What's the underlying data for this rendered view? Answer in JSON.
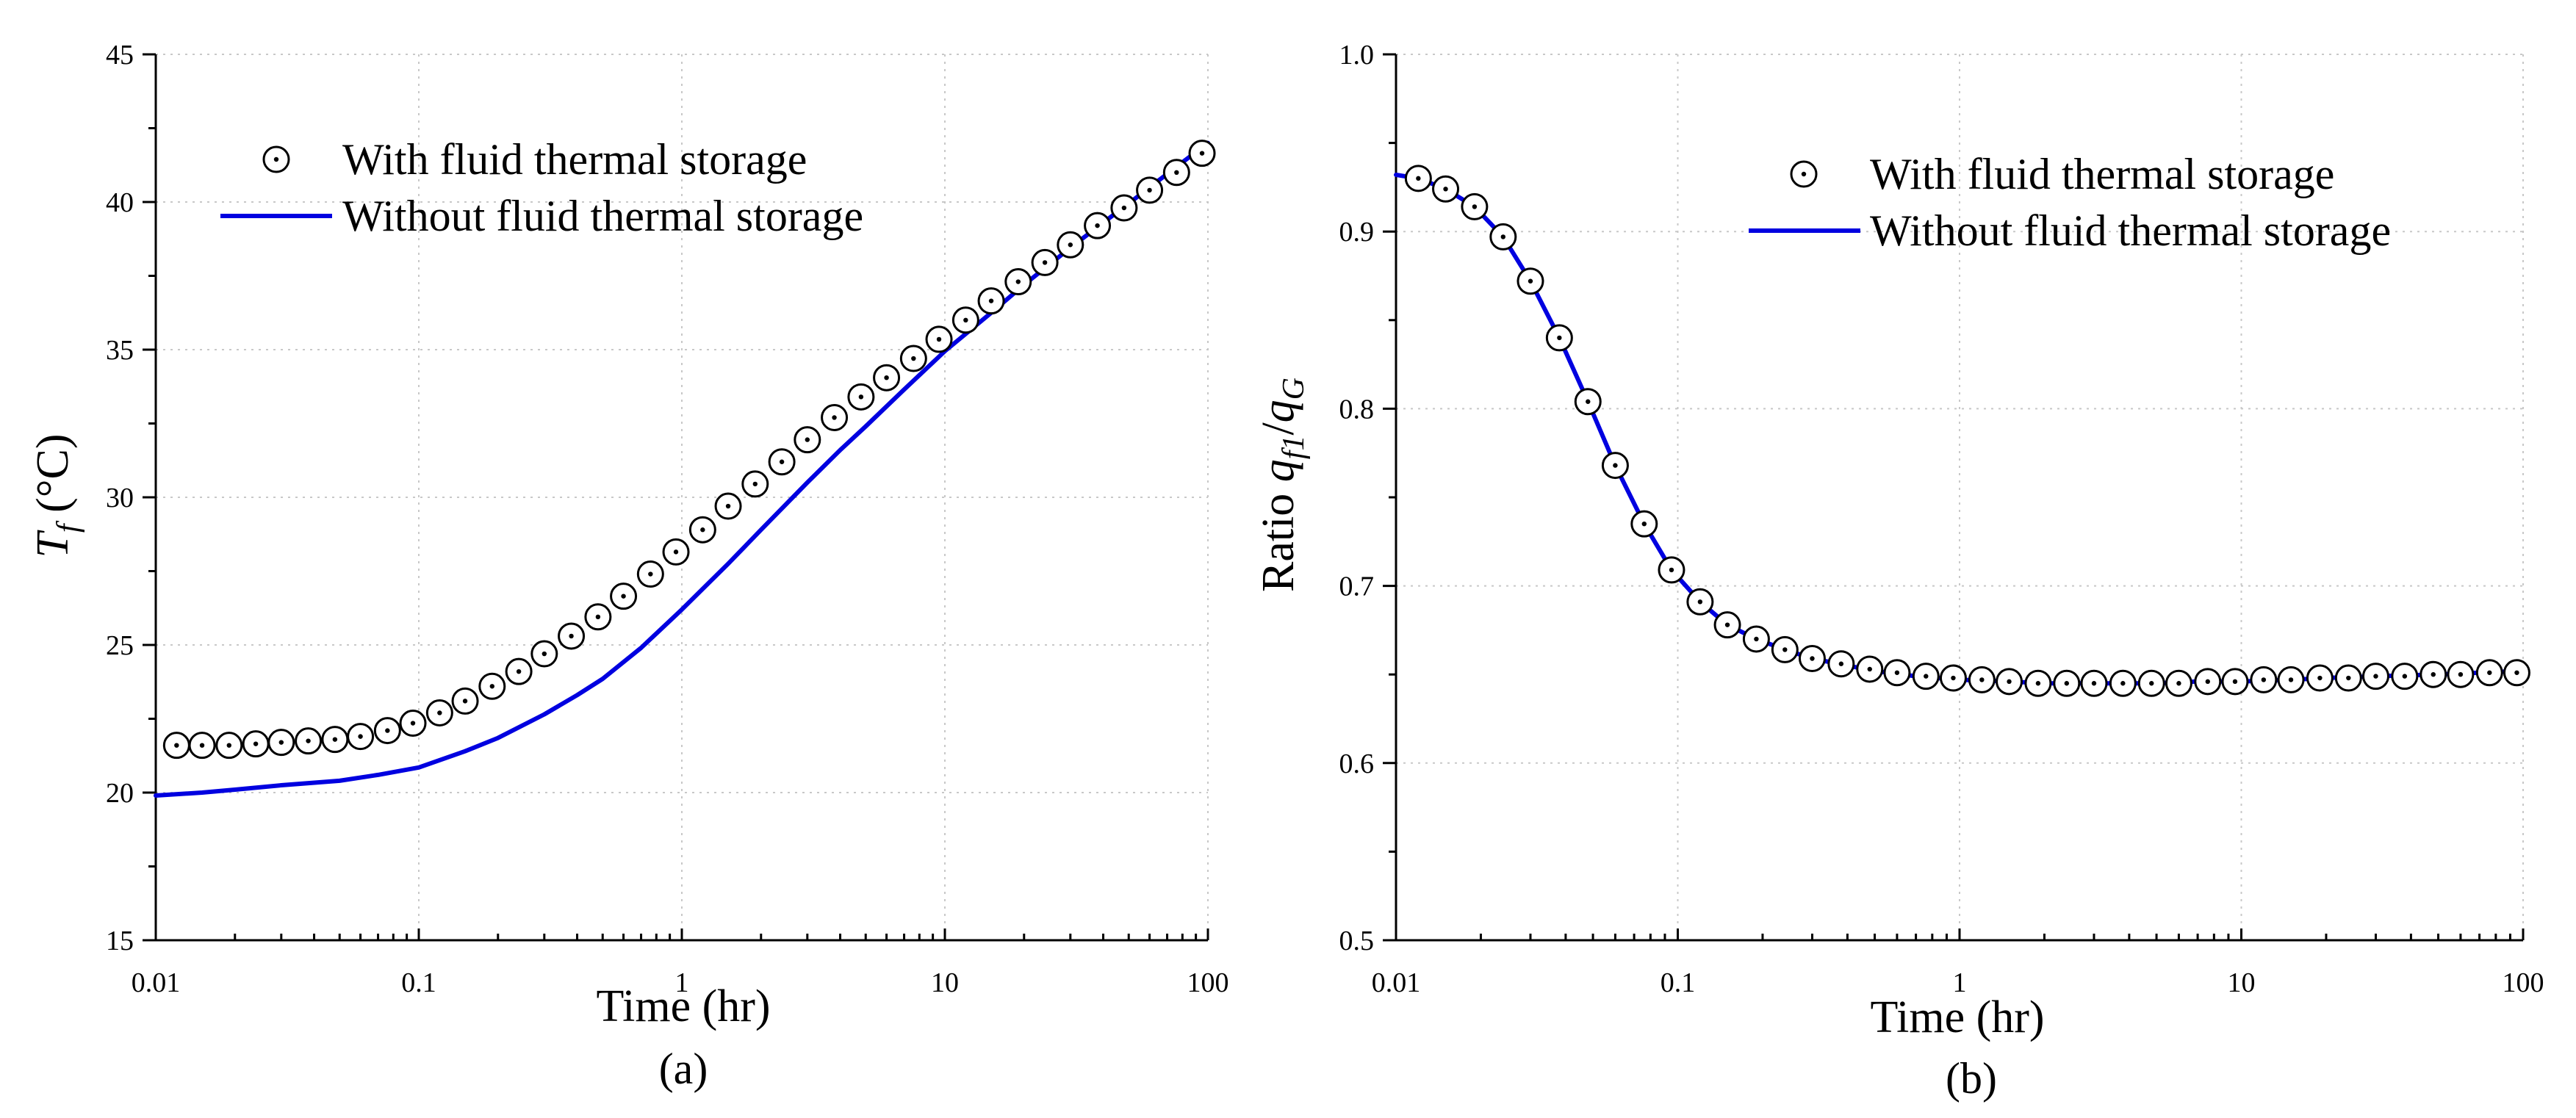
{
  "chart_data": [
    {
      "type": "scatter+line",
      "panel_label": "(a)",
      "xscale": "log",
      "xlim": [
        0.01,
        100
      ],
      "ylim": [
        15,
        45
      ],
      "xlabel": "Time (hr)",
      "ylabel_main": "T",
      "ylabel_sub": "f",
      "ylabel_unit": " (°C)",
      "x_ticks": [
        0.01,
        0.1,
        1,
        10,
        100
      ],
      "x_tick_labels": [
        "0.01",
        "0.1",
        "1",
        "10",
        "100"
      ],
      "y_ticks": [
        15,
        20,
        25,
        30,
        35,
        40,
        45
      ],
      "y_tick_labels": [
        "15",
        "20",
        "25",
        "30",
        "35",
        "40",
        "45"
      ],
      "grid": true,
      "legend_position": "top-left",
      "series": [
        {
          "name": "With fluid thermal storage",
          "style": "markers",
          "color": "#000000",
          "x": [
            0.012,
            0.015,
            0.019,
            0.024,
            0.03,
            0.038,
            0.048,
            0.06,
            0.076,
            0.095,
            0.12,
            0.15,
            0.19,
            0.24,
            0.3,
            0.38,
            0.48,
            0.6,
            0.76,
            0.95,
            1.2,
            1.5,
            1.9,
            2.4,
            3.0,
            3.8,
            4.8,
            6.0,
            7.6,
            9.5,
            12,
            15,
            19,
            24,
            30,
            38,
            48,
            60,
            76,
            95
          ],
          "y": [
            21.6,
            21.6,
            21.6,
            21.65,
            21.7,
            21.75,
            21.8,
            21.9,
            22.1,
            22.35,
            22.7,
            23.1,
            23.6,
            24.1,
            24.7,
            25.3,
            25.95,
            26.65,
            27.4,
            28.15,
            28.9,
            29.7,
            30.45,
            31.2,
            31.95,
            32.7,
            33.4,
            34.05,
            34.7,
            35.35,
            36.0,
            36.65,
            37.3,
            37.95,
            38.55,
            39.2,
            39.8,
            40.4,
            41.0,
            41.65
          ]
        },
        {
          "name": "Without fluid thermal storage",
          "style": "line",
          "color": "#0000e0",
          "x": [
            0.01,
            0.015,
            0.02,
            0.03,
            0.05,
            0.07,
            0.1,
            0.15,
            0.2,
            0.3,
            0.4,
            0.5,
            0.7,
            1,
            1.5,
            2,
            3,
            4,
            5,
            7,
            10,
            15,
            20,
            30,
            40,
            50,
            70,
            100
          ],
          "y": [
            19.9,
            20.0,
            20.1,
            20.25,
            20.4,
            20.6,
            20.85,
            21.4,
            21.85,
            22.65,
            23.3,
            23.85,
            24.9,
            26.2,
            27.75,
            28.9,
            30.5,
            31.6,
            32.4,
            33.65,
            34.95,
            36.25,
            37.2,
            38.45,
            39.3,
            39.95,
            40.95,
            42.0
          ]
        }
      ]
    },
    {
      "type": "scatter+line",
      "panel_label": "(b)",
      "xscale": "log",
      "xlim": [
        0.01,
        100
      ],
      "ylim": [
        0.5,
        1.0
      ],
      "xlabel": "Time (hr)",
      "ylabel_prefix": "Ratio ",
      "ylabel_q": "q",
      "ylabel_sub1": "f1",
      "ylabel_slash": "/",
      "ylabel_sub2": "G",
      "x_ticks": [
        0.01,
        0.1,
        1,
        10,
        100
      ],
      "x_tick_labels": [
        "0.01",
        "0.1",
        "1",
        "10",
        "100"
      ],
      "y_ticks": [
        0.5,
        0.6,
        0.7,
        0.8,
        0.9,
        1.0
      ],
      "y_tick_labels": [
        "0.5",
        "0.6",
        "0.7",
        "0.8",
        "0.9",
        "1.0"
      ],
      "grid": true,
      "legend_position": "top-right",
      "series": [
        {
          "name": "With fluid thermal storage",
          "style": "markers",
          "color": "#000000",
          "x": [
            0.012,
            0.015,
            0.019,
            0.024,
            0.03,
            0.038,
            0.048,
            0.06,
            0.076,
            0.095,
            0.12,
            0.15,
            0.19,
            0.24,
            0.3,
            0.38,
            0.48,
            0.6,
            0.76,
            0.95,
            1.2,
            1.5,
            1.9,
            2.4,
            3.0,
            3.8,
            4.8,
            6.0,
            7.6,
            9.5,
            12,
            15,
            19,
            24,
            30,
            38,
            48,
            60,
            76,
            95
          ],
          "y": [
            0.93,
            0.924,
            0.914,
            0.897,
            0.872,
            0.84,
            0.804,
            0.768,
            0.735,
            0.709,
            0.691,
            0.678,
            0.67,
            0.664,
            0.659,
            0.656,
            0.653,
            0.651,
            0.649,
            0.648,
            0.647,
            0.646,
            0.645,
            0.645,
            0.645,
            0.645,
            0.645,
            0.645,
            0.646,
            0.646,
            0.647,
            0.647,
            0.648,
            0.648,
            0.649,
            0.649,
            0.65,
            0.65,
            0.651,
            0.651
          ]
        },
        {
          "name": "Without fluid thermal storage",
          "style": "line",
          "color": "#0000e0",
          "x": [
            0.01,
            0.012,
            0.015,
            0.019,
            0.024,
            0.03,
            0.038,
            0.048,
            0.06,
            0.076,
            0.095,
            0.12,
            0.15,
            0.19,
            0.24,
            0.3,
            0.4,
            0.5,
            0.7,
            1,
            1.5,
            2,
            3,
            5,
            7,
            10,
            15,
            20,
            30,
            50,
            70,
            100
          ],
          "y": [
            0.932,
            0.93,
            0.924,
            0.914,
            0.897,
            0.872,
            0.84,
            0.804,
            0.768,
            0.735,
            0.709,
            0.691,
            0.678,
            0.67,
            0.664,
            0.659,
            0.655,
            0.652,
            0.649,
            0.647,
            0.646,
            0.645,
            0.645,
            0.645,
            0.646,
            0.646,
            0.647,
            0.648,
            0.649,
            0.65,
            0.651,
            0.652
          ]
        }
      ]
    }
  ]
}
